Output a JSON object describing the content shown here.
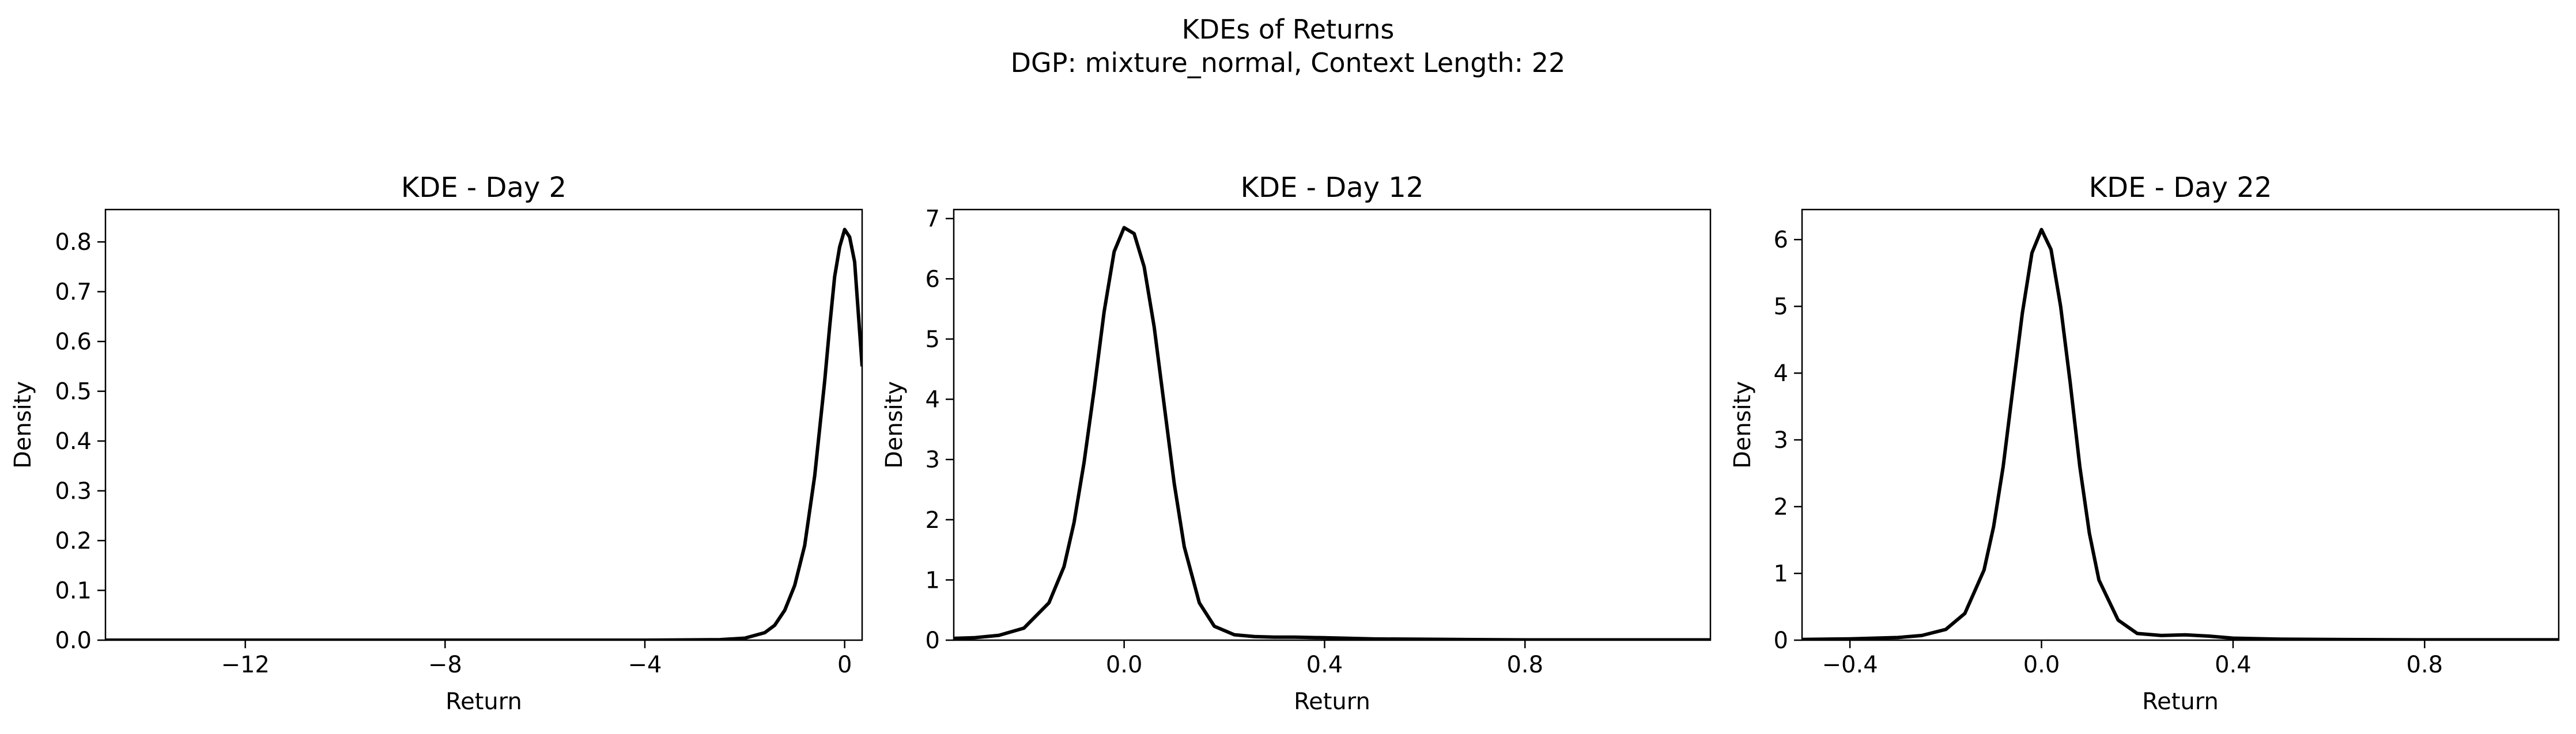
{
  "figure": {
    "title": "KDEs of Returns",
    "subtitle": "DGP: mixture_normal, Context Length: 22"
  },
  "chart_data": [
    {
      "type": "line",
      "title": "KDE - Day 2",
      "xlabel": "Return",
      "ylabel": "Density",
      "xlim": [
        -14.8,
        0.35
      ],
      "ylim": [
        0,
        0.865
      ],
      "xticks": [
        -12,
        -8,
        -4,
        0
      ],
      "xtick_labels": [
        "−12",
        "−8",
        "−4",
        "0"
      ],
      "yticks": [
        0,
        0.1,
        0.2,
        0.3,
        0.4,
        0.5,
        0.6,
        0.7,
        0.8
      ],
      "ytick_labels": [
        "0.0",
        "0.1",
        "0.2",
        "0.3",
        "0.4",
        "0.5",
        "0.6",
        "0.7",
        "0.8"
      ],
      "grid": false,
      "series": [
        {
          "color": "#000000",
          "x": [
            -14.8,
            -12,
            -8,
            -4,
            -2.5,
            -2.0,
            -1.6,
            -1.4,
            -1.2,
            -1.0,
            -0.8,
            -0.6,
            -0.4,
            -0.3,
            -0.2,
            -0.1,
            0.0,
            0.1,
            0.2,
            0.35
          ],
          "y": [
            0.0,
            0.0,
            0.0,
            0.0,
            0.001,
            0.004,
            0.015,
            0.03,
            0.06,
            0.11,
            0.19,
            0.33,
            0.52,
            0.63,
            0.73,
            0.79,
            0.825,
            0.81,
            0.76,
            0.55
          ]
        }
      ]
    },
    {
      "type": "line",
      "title": "KDE - Day 12",
      "xlabel": "Return",
      "ylabel": "Density",
      "xlim": [
        -0.34,
        1.17
      ],
      "ylim": [
        0,
        7.15
      ],
      "xticks": [
        0.0,
        0.4,
        0.8
      ],
      "xtick_labels": [
        "0.0",
        "0.4",
        "0.8"
      ],
      "yticks": [
        0,
        1,
        2,
        3,
        4,
        5,
        6,
        7
      ],
      "ytick_labels": [
        "0",
        "1",
        "2",
        "3",
        "4",
        "5",
        "6",
        "7"
      ],
      "grid": false,
      "series": [
        {
          "color": "#000000",
          "x": [
            -0.34,
            -0.3,
            -0.25,
            -0.2,
            -0.15,
            -0.12,
            -0.1,
            -0.08,
            -0.06,
            -0.04,
            -0.02,
            0.0,
            0.02,
            0.04,
            0.06,
            0.08,
            0.1,
            0.12,
            0.15,
            0.18,
            0.22,
            0.26,
            0.3,
            0.34,
            0.4,
            0.5,
            0.6,
            0.7,
            0.8,
            0.9,
            1.0,
            1.17
          ],
          "y": [
            0.03,
            0.04,
            0.08,
            0.2,
            0.62,
            1.22,
            1.95,
            2.95,
            4.15,
            5.45,
            6.45,
            6.85,
            6.75,
            6.2,
            5.2,
            3.9,
            2.6,
            1.55,
            0.62,
            0.23,
            0.09,
            0.06,
            0.05,
            0.05,
            0.04,
            0.02,
            0.015,
            0.01,
            0.005,
            0.005,
            0.005,
            0.005
          ]
        }
      ]
    },
    {
      "type": "line",
      "title": "KDE - Day 22",
      "xlabel": "Return",
      "ylabel": "Density",
      "xlim": [
        -0.5,
        1.08
      ],
      "ylim": [
        0,
        6.45
      ],
      "xticks": [
        -0.4,
        0.0,
        0.4,
        0.8
      ],
      "xtick_labels": [
        "−0.4",
        "0.0",
        "0.4",
        "0.8"
      ],
      "yticks": [
        0,
        1,
        2,
        3,
        4,
        5,
        6
      ],
      "ytick_labels": [
        "0",
        "1",
        "2",
        "3",
        "4",
        "5",
        "6"
      ],
      "grid": false,
      "series": [
        {
          "color": "#000000",
          "x": [
            -0.5,
            -0.4,
            -0.3,
            -0.25,
            -0.2,
            -0.16,
            -0.12,
            -0.1,
            -0.08,
            -0.06,
            -0.04,
            -0.02,
            0.0,
            0.02,
            0.04,
            0.06,
            0.08,
            0.1,
            0.12,
            0.16,
            0.2,
            0.25,
            0.3,
            0.35,
            0.4,
            0.5,
            0.6,
            0.8,
            1.08
          ],
          "y": [
            0.01,
            0.02,
            0.04,
            0.07,
            0.16,
            0.4,
            1.05,
            1.7,
            2.6,
            3.75,
            4.9,
            5.8,
            6.15,
            5.85,
            5.0,
            3.85,
            2.6,
            1.6,
            0.9,
            0.3,
            0.1,
            0.07,
            0.08,
            0.06,
            0.03,
            0.015,
            0.01,
            0.005,
            0.005
          ]
        }
      ]
    }
  ]
}
